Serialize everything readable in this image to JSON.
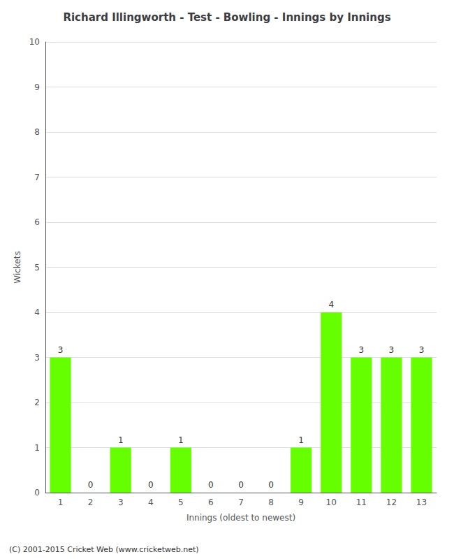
{
  "chart_data": {
    "type": "bar",
    "title": "Richard Illingworth - Test - Bowling - Innings by Innings",
    "xlabel": "Innings (oldest to newest)",
    "ylabel": "Wickets",
    "categories": [
      1,
      2,
      3,
      4,
      5,
      6,
      7,
      8,
      9,
      10,
      11,
      12,
      13
    ],
    "values": [
      3,
      0,
      1,
      0,
      1,
      0,
      0,
      0,
      1,
      4,
      3,
      3,
      3
    ],
    "color": "#66ff00",
    "ylim": [
      0,
      10
    ],
    "yticks": [
      0,
      1,
      2,
      3,
      4,
      5,
      6,
      7,
      8,
      9,
      10
    ],
    "grid": true,
    "data_labels": true,
    "footer": "(C) 2001-2015 Cricket Web (www.cricketweb.net)"
  }
}
